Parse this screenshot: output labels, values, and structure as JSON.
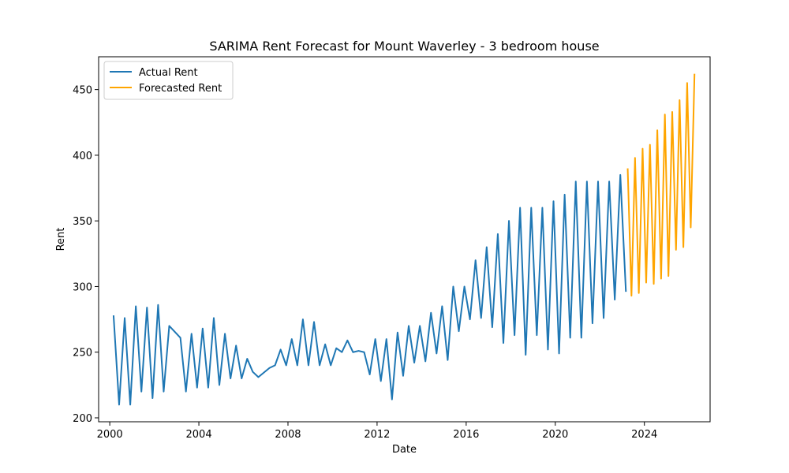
{
  "chart_data": {
    "type": "line",
    "title": "SARIMA Rent Forecast for Mount Waverley - 3 bedroom house",
    "xlabel": "Date",
    "ylabel": "Rent",
    "xlim": [
      1999.5,
      2026.95
    ],
    "ylim": [
      197,
      475
    ],
    "xticks": [
      "2000",
      "2004",
      "2008",
      "2012",
      "2016",
      "2020",
      "2024"
    ],
    "yticks": [
      "200",
      "250",
      "300",
      "350",
      "400",
      "450"
    ],
    "grid": false,
    "legend": "top-left",
    "series": [
      {
        "name": "Actual Rent",
        "color": "#1f77b4",
        "x": [
          2000.17,
          2000.42,
          2000.67,
          2000.92,
          2001.17,
          2001.42,
          2001.67,
          2001.92,
          2002.17,
          2002.42,
          2002.67,
          2003.17,
          2003.42,
          2003.67,
          2003.92,
          2004.17,
          2004.42,
          2004.67,
          2004.92,
          2005.17,
          2005.42,
          2005.67,
          2005.92,
          2006.17,
          2006.42,
          2006.67,
          2007.17,
          2007.42,
          2007.67,
          2007.92,
          2008.17,
          2008.42,
          2008.67,
          2008.92,
          2009.17,
          2009.42,
          2009.67,
          2009.92,
          2010.17,
          2010.42,
          2010.67,
          2010.92,
          2011.17,
          2011.42,
          2011.67,
          2011.92,
          2012.17,
          2012.42,
          2012.67,
          2012.92,
          2013.17,
          2013.42,
          2013.67,
          2013.92,
          2014.17,
          2014.42,
          2014.67,
          2014.92,
          2015.17,
          2015.42,
          2015.67,
          2015.92,
          2016.17,
          2016.42,
          2016.67,
          2016.92,
          2017.17,
          2017.42,
          2017.67,
          2017.92,
          2018.17,
          2018.42,
          2018.67,
          2018.92,
          2019.17,
          2019.42,
          2019.67,
          2019.92,
          2020.17,
          2020.42,
          2020.67,
          2020.92,
          2021.17,
          2021.42,
          2021.67,
          2021.92,
          2022.17,
          2022.42,
          2022.67,
          2022.92,
          2023.17
        ],
        "values": [
          278,
          210,
          276,
          210,
          285,
          220,
          284,
          215,
          286,
          220,
          270,
          261,
          220,
          264,
          223,
          268,
          223,
          276,
          225,
          264,
          230,
          255,
          230,
          245,
          235,
          231,
          238,
          240,
          252,
          240,
          260,
          240,
          275,
          240,
          273,
          240,
          256,
          240,
          253,
          250,
          259,
          250,
          251,
          250,
          233,
          260,
          228,
          260,
          214,
          265,
          232,
          270,
          242,
          270,
          243,
          280,
          249,
          285,
          244,
          300,
          266,
          300,
          275,
          320,
          276,
          330,
          269,
          340,
          257,
          350,
          263,
          360,
          248,
          360,
          263,
          360,
          252,
          365,
          249,
          370,
          261,
          380,
          261,
          380,
          272,
          380,
          276,
          380,
          290,
          385,
          296
        ]
      },
      {
        "name": "Forecasted Rent",
        "color": "#ffa500",
        "x": [
          2023.25,
          2023.42,
          2023.58,
          2023.75,
          2023.92,
          2024.08,
          2024.25,
          2024.42,
          2024.58,
          2024.75,
          2024.92,
          2025.08,
          2025.25,
          2025.42,
          2025.58,
          2025.75,
          2025.92,
          2026.08,
          2026.25
        ],
        "values": [
          390,
          293,
          398,
          295,
          405,
          303,
          408,
          302,
          419,
          306,
          431,
          308,
          433,
          328,
          442,
          330,
          455,
          345,
          462
        ]
      }
    ]
  }
}
